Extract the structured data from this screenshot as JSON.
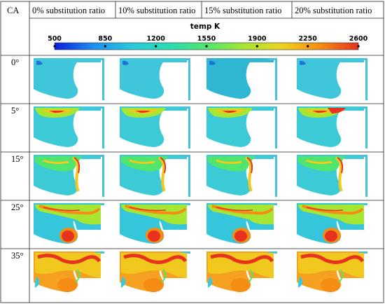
{
  "corner_label": "CA",
  "columns": [
    {
      "label": "0% substitution ratio"
    },
    {
      "label": "10% substitution ratio"
    },
    {
      "label": "15% substitution ratio"
    },
    {
      "label": "20% substitution ratio"
    }
  ],
  "colorbar": {
    "title": "temp K",
    "ticks": [
      "500",
      "850",
      "1200",
      "1550",
      "1900",
      "2250",
      "2600"
    ],
    "colormap": [
      "#0a1edc",
      "#1e8cf0",
      "#28c8dc",
      "#2adcb4",
      "#50e66e",
      "#a6e632",
      "#f0d21e",
      "#f58c14",
      "#e6321e"
    ]
  },
  "rows": [
    {
      "label": "0°",
      "stage": 0
    },
    {
      "label": "5°",
      "stage": 1
    },
    {
      "label": "15°",
      "stage": 2
    },
    {
      "label": "25°",
      "stage": 3
    },
    {
      "label": "35°",
      "stage": 4
    }
  ]
}
